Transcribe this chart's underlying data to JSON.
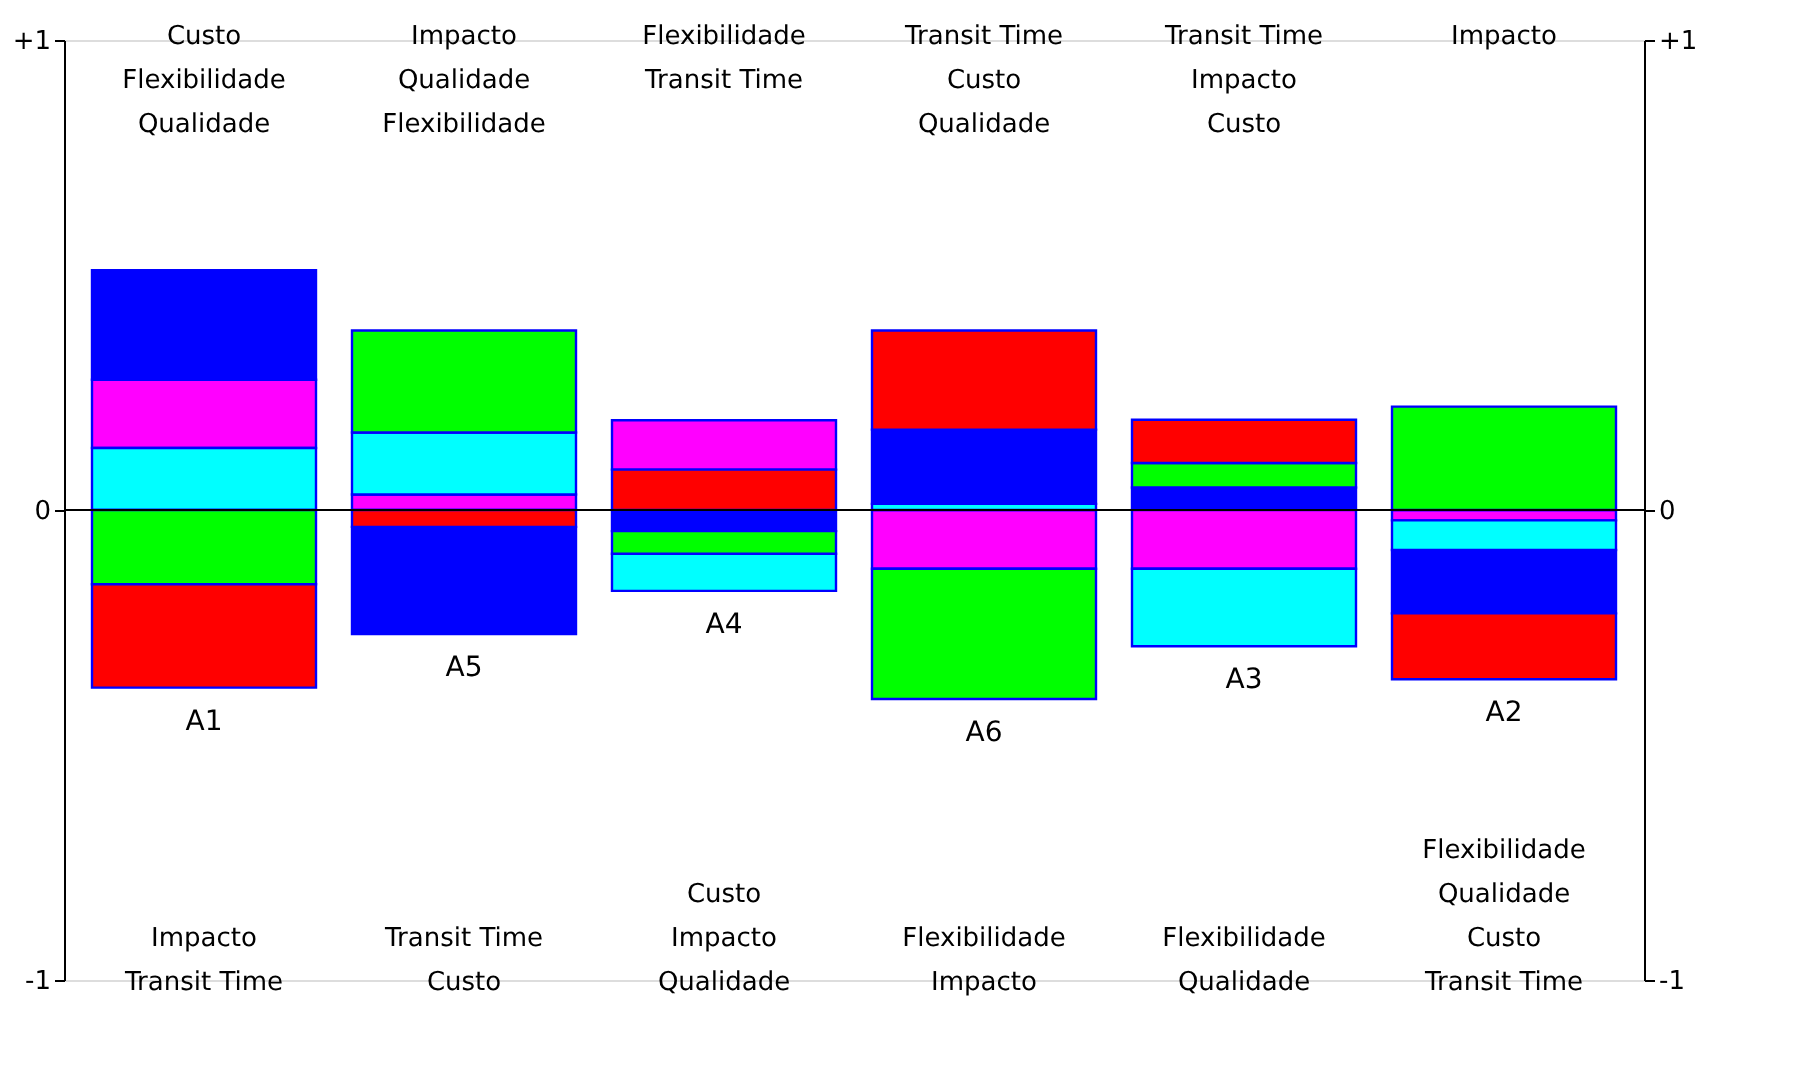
{
  "chart_data": {
    "type": "bar",
    "stacked": true,
    "categories": [
      "A1",
      "A5",
      "A4",
      "A6",
      "A3",
      "A2"
    ],
    "series": [
      {
        "color": "#0000ff",
        "values": [
          0.233,
          -0.228,
          -0.045,
          0.158,
          0.048,
          -0.135
        ]
      },
      {
        "color": "#ff00ff",
        "values": [
          0.145,
          0.033,
          0.105,
          -0.125,
          -0.125,
          -0.022
        ]
      },
      {
        "color": "#00ffff",
        "values": [
          0.132,
          0.132,
          -0.079,
          0.013,
          -0.165,
          -0.063
        ]
      },
      {
        "color": "#00ff00",
        "values": [
          -0.158,
          0.217,
          -0.048,
          -0.277,
          0.052,
          0.22
        ]
      },
      {
        "color": "#ff0000",
        "values": [
          -0.22,
          -0.036,
          0.086,
          0.211,
          0.092,
          -0.14
        ]
      }
    ],
    "ylim": [
      -1,
      1
    ],
    "yticks": [
      {
        "value": 1,
        "label": "+1"
      },
      0,
      -1
    ],
    "y2lim": [
      -1,
      1
    ],
    "y2ticks": [
      {
        "value": 1,
        "label": "+1"
      },
      0,
      -1
    ],
    "ref_lines": [
      {
        "axis": "y",
        "value": 0,
        "color": "#000000"
      }
    ],
    "tick_labels": "y",
    "grid": false,
    "annotations": [
      "Custo\nFlexibilidade\nQualidade",
      "Impacto\nQualidade\nFlexibilidade",
      "Flexibilidade\nTransit Time",
      "Transit Time\nCusto\nQualidade",
      "Transit Time\nImpacto\nCusto",
      "Impacto",
      "Impacto\nTransit Time",
      "Transit Time\nCusto",
      "Custo\nImpacto\nQualidade",
      "Flexibilidade\nImpacto",
      "Flexibilidade\nQualidade",
      "Flexibilidade\nQualidade\nCusto\nTransit Time"
    ]
  }
}
